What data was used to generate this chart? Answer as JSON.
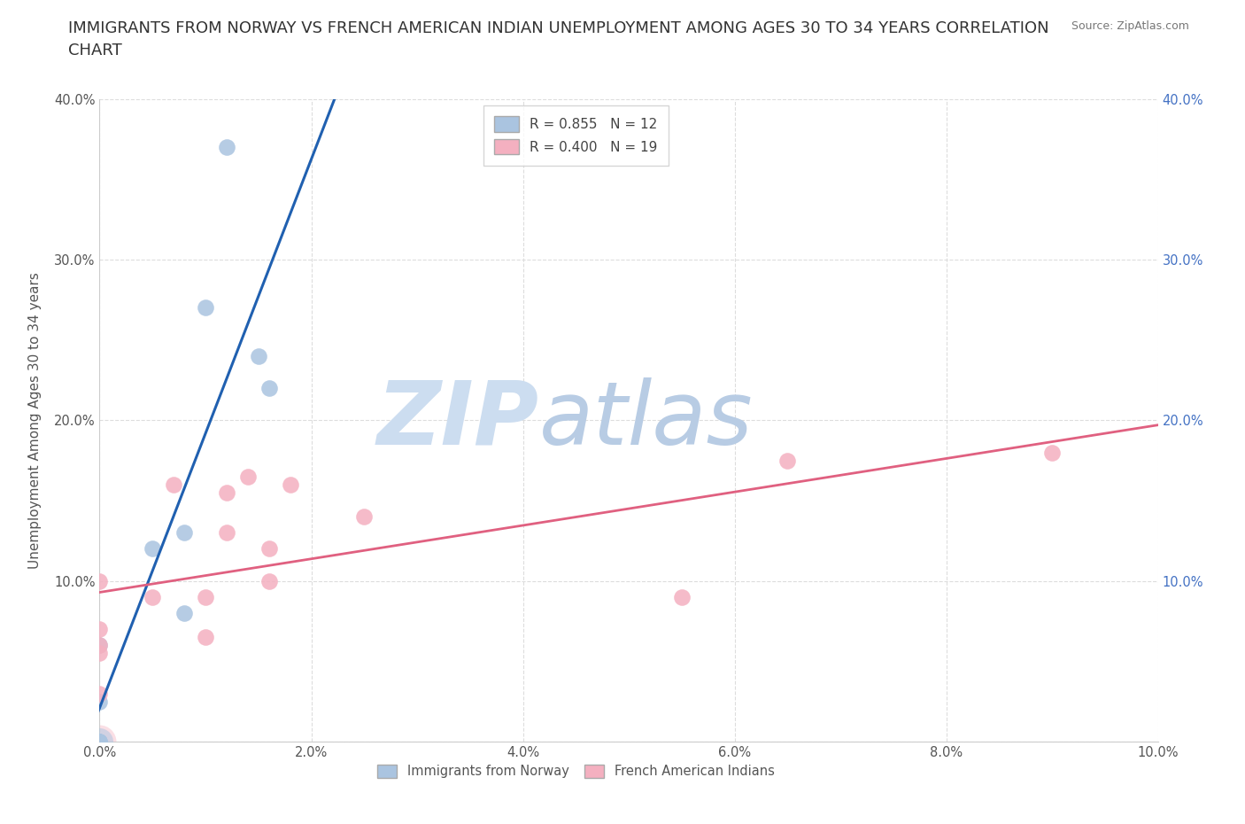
{
  "title_line1": "IMMIGRANTS FROM NORWAY VS FRENCH AMERICAN INDIAN UNEMPLOYMENT AMONG AGES 30 TO 34 YEARS CORRELATION",
  "title_line2": "CHART",
  "source": "Source: ZipAtlas.com",
  "ylabel": "Unemployment Among Ages 30 to 34 years",
  "xlim": [
    0.0,
    0.1
  ],
  "ylim": [
    0.0,
    0.4
  ],
  "xticks": [
    0.0,
    0.02,
    0.04,
    0.06,
    0.08,
    0.1
  ],
  "yticks": [
    0.0,
    0.1,
    0.2,
    0.3,
    0.4
  ],
  "xticklabels": [
    "0.0%",
    "2.0%",
    "4.0%",
    "6.0%",
    "8.0%",
    "10.0%"
  ],
  "yticklabels_left": [
    "",
    "10.0%",
    "20.0%",
    "30.0%",
    "40.0%"
  ],
  "yticklabels_right": [
    "",
    "10.0%",
    "20.0%",
    "30.0%",
    "40.0%"
  ],
  "norway_color": "#aac4e0",
  "norway_line_color": "#2060b0",
  "french_color": "#f4b0c0",
  "french_line_color": "#e06080",
  "norway_R": 0.855,
  "norway_N": 12,
  "french_R": 0.4,
  "french_N": 19,
  "norway_x": [
    0.0,
    0.0,
    0.0,
    0.0,
    0.0,
    0.005,
    0.008,
    0.008,
    0.01,
    0.012,
    0.015,
    0.016
  ],
  "norway_y": [
    0.0,
    0.0,
    0.0,
    0.025,
    0.06,
    0.12,
    0.08,
    0.13,
    0.27,
    0.37,
    0.24,
    0.22
  ],
  "french_x": [
    0.0,
    0.0,
    0.0,
    0.0,
    0.0,
    0.005,
    0.007,
    0.01,
    0.01,
    0.012,
    0.012,
    0.014,
    0.016,
    0.016,
    0.018,
    0.025,
    0.055,
    0.065,
    0.09
  ],
  "french_y": [
    0.03,
    0.055,
    0.06,
    0.07,
    0.1,
    0.09,
    0.16,
    0.065,
    0.09,
    0.13,
    0.155,
    0.165,
    0.1,
    0.12,
    0.16,
    0.14,
    0.09,
    0.175,
    0.18
  ],
  "background_color": "#ffffff",
  "watermark_zip": "ZIP",
  "watermark_atlas": "atlas",
  "watermark_color_zip": "#ccddf0",
  "watermark_color_atlas": "#b8cce4",
  "grid_color": "#dddddd",
  "dot_size": 180,
  "large_dot_size": 500,
  "title_fontsize": 13,
  "axis_fontsize": 11,
  "tick_fontsize": 10.5,
  "legend_fontsize": 11
}
